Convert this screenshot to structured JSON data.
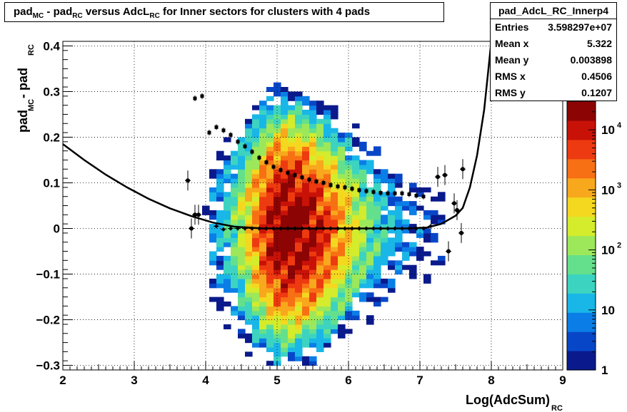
{
  "chart_data": {
    "type": "heatmap",
    "title": {
      "parts": [
        {
          "t": "pad",
          "s": "MC"
        },
        {
          "t": " - pad",
          "s": "RC"
        },
        {
          "t": " versus AdcL",
          "s": "RC"
        },
        {
          "t": " for Inner sectors for clusters with 4 pads",
          "s": ""
        }
      ]
    },
    "xlabel": {
      "t": "Log(AdcSum)",
      "s": "RC"
    },
    "ylabel": {
      "parts": [
        {
          "t": "pad",
          "s": "MC"
        },
        {
          "t": " - pad",
          "s": "RC"
        }
      ]
    },
    "xlim": [
      2,
      9
    ],
    "ylim": [
      -0.31,
      0.41
    ],
    "x_ticks": [
      "2",
      "3",
      "4",
      "5",
      "6",
      "7",
      "8",
      "9"
    ],
    "y_ticks": [
      "−0.3",
      "−0.2",
      "−0.1",
      "0",
      "0.1",
      "0.2",
      "0.3",
      "0.4"
    ],
    "colorbar": {
      "scale": "log",
      "range": [
        1,
        30000
      ],
      "labels": [
        {
          "v": 1,
          "t": "1"
        },
        {
          "v": 10,
          "t": "10"
        },
        {
          "v": 100,
          "t": "10",
          "e": "2"
        },
        {
          "v": 1000,
          "t": "10",
          "e": "3"
        },
        {
          "v": 10000,
          "t": "10",
          "e": "4"
        }
      ],
      "colors": [
        "#0a1a8c",
        "#0846c8",
        "#0a7ee6",
        "#19b6e8",
        "#3cd4c0",
        "#64e08c",
        "#9ce85a",
        "#d4ec2c",
        "#f4d820",
        "#f8a81c",
        "#f87014",
        "#ee3a10",
        "#c81208",
        "#8c0404"
      ]
    },
    "stats": {
      "name": "pad_AdcL_RC_Innerp4",
      "rows": [
        {
          "label": "Entries",
          "value": "3.598297e+07"
        },
        {
          "label": "Mean x",
          "value": "5.322"
        },
        {
          "label": "Mean y",
          "value": "0.003898"
        },
        {
          "label": "RMS x",
          "value": "0.4506"
        },
        {
          "label": "RMS y",
          "value": "0.1207"
        }
      ]
    },
    "profile_mean": [
      [
        3.75,
        0.105
      ],
      [
        3.8,
        0.0
      ],
      [
        3.85,
        0.03
      ],
      [
        3.9,
        0.03
      ],
      [
        4.15,
        0.005
      ],
      [
        4.25,
        -0.002
      ],
      [
        4.35,
        0.0
      ],
      [
        4.45,
        0.0
      ],
      [
        4.55,
        0.0
      ],
      [
        4.65,
        0.0
      ],
      [
        4.75,
        0.0
      ],
      [
        4.85,
        0.0
      ],
      [
        4.95,
        0.0
      ],
      [
        5.05,
        0.0
      ],
      [
        5.15,
        0.0
      ],
      [
        5.25,
        0.0
      ],
      [
        5.35,
        0.0
      ],
      [
        5.45,
        0.0
      ],
      [
        5.55,
        0.0
      ],
      [
        5.65,
        0.0
      ],
      [
        5.75,
        0.0
      ],
      [
        5.85,
        0.0
      ],
      [
        5.95,
        0.0
      ],
      [
        6.05,
        0.0
      ],
      [
        6.15,
        0.0
      ],
      [
        6.25,
        0.0
      ],
      [
        6.35,
        0.0
      ],
      [
        6.45,
        0.0
      ],
      [
        6.55,
        0.0
      ],
      [
        6.65,
        0.0
      ],
      [
        6.75,
        0.0
      ],
      [
        6.85,
        0.0
      ],
      [
        6.95,
        0.0
      ],
      [
        7.05,
        0.0
      ],
      [
        7.15,
        0.005
      ],
      [
        7.25,
        0.113
      ],
      [
        7.35,
        0.117
      ],
      [
        7.4,
        -0.05
      ],
      [
        7.48,
        0.055
      ],
      [
        7.52,
        0.04
      ],
      [
        7.58,
        -0.01
      ],
      [
        7.6,
        0.13
      ]
    ],
    "profile_rms": [
      [
        3.85,
        0.285
      ],
      [
        3.95,
        0.29
      ],
      [
        4.05,
        0.21
      ],
      [
        4.15,
        0.222
      ],
      [
        4.25,
        0.215
      ],
      [
        4.35,
        0.205
      ],
      [
        4.45,
        0.19
      ],
      [
        4.55,
        0.18
      ],
      [
        4.65,
        0.168
      ],
      [
        4.75,
        0.155
      ],
      [
        4.85,
        0.145
      ],
      [
        4.95,
        0.135
      ],
      [
        5.05,
        0.128
      ],
      [
        5.15,
        0.122
      ],
      [
        5.25,
        0.117
      ],
      [
        5.35,
        0.112
      ],
      [
        5.45,
        0.107
      ],
      [
        5.55,
        0.103
      ],
      [
        5.65,
        0.1
      ],
      [
        5.75,
        0.095
      ],
      [
        5.85,
        0.092
      ],
      [
        5.95,
        0.09
      ],
      [
        6.05,
        0.087
      ],
      [
        6.15,
        0.084
      ],
      [
        6.25,
        0.082
      ],
      [
        6.35,
        0.08
      ],
      [
        6.45,
        0.078
      ],
      [
        6.55,
        0.077
      ],
      [
        6.65,
        0.077
      ],
      [
        6.75,
        0.077
      ],
      [
        6.85,
        0.075
      ],
      [
        6.95,
        0.072
      ],
      [
        7.05,
        0.07
      ]
    ],
    "fit_curve": [
      [
        2.0,
        0.185
      ],
      [
        2.3,
        0.15
      ],
      [
        2.6,
        0.118
      ],
      [
        2.9,
        0.09
      ],
      [
        3.2,
        0.065
      ],
      [
        3.5,
        0.044
      ],
      [
        3.8,
        0.027
      ],
      [
        4.1,
        0.013
      ],
      [
        4.4,
        0.004
      ],
      [
        4.8,
        0.0
      ],
      [
        5.5,
        0.0
      ],
      [
        6.2,
        0.0
      ],
      [
        6.8,
        0.0
      ],
      [
        7.1,
        0.002
      ],
      [
        7.3,
        0.01
      ],
      [
        7.5,
        0.028
      ],
      [
        7.6,
        0.045
      ],
      [
        7.7,
        0.09
      ],
      [
        7.8,
        0.16
      ],
      [
        7.9,
        0.26
      ],
      [
        8.0,
        0.41
      ]
    ]
  }
}
